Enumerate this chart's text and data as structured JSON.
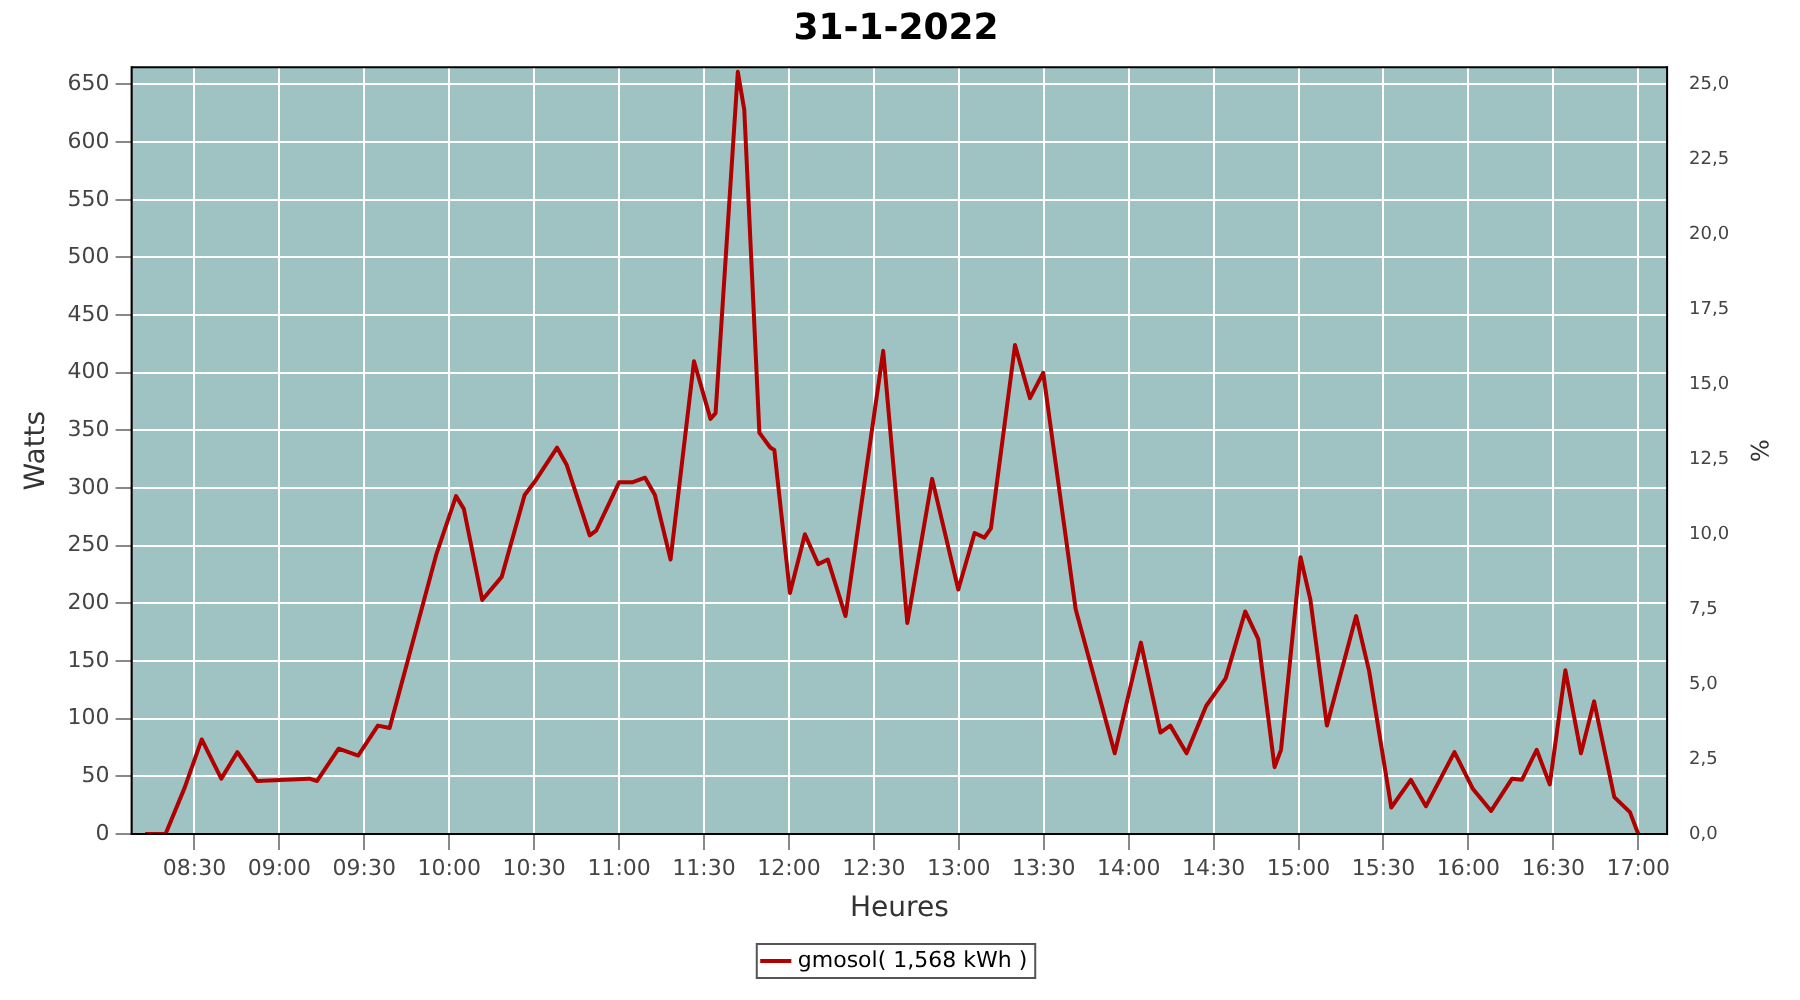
{
  "chart_data": {
    "type": "line",
    "title": "31-1-2022",
    "xlabel": "Heures",
    "ylabel": "Watts",
    "y2label": "%",
    "xlim": [
      8.13,
      17.17
    ],
    "xticks": [
      {
        "value": 8.5,
        "label": "08:30"
      },
      {
        "value": 9,
        "label": "09:00"
      },
      {
        "value": 9.5,
        "label": "09:30"
      },
      {
        "value": 10,
        "label": "10:00"
      },
      {
        "value": 10.5,
        "label": "10:30"
      },
      {
        "value": 11,
        "label": "11:00"
      },
      {
        "value": 11.5,
        "label": "11:30"
      },
      {
        "value": 12,
        "label": "12:00"
      },
      {
        "value": 12.5,
        "label": "12:30"
      },
      {
        "value": 13,
        "label": "13:00"
      },
      {
        "value": 13.5,
        "label": "13:30"
      },
      {
        "value": 14,
        "label": "14:00"
      },
      {
        "value": 14.5,
        "label": "14:30"
      },
      {
        "value": 15,
        "label": "15:00"
      },
      {
        "value": 15.5,
        "label": "15:30"
      },
      {
        "value": 16,
        "label": "16:00"
      },
      {
        "value": 16.5,
        "label": "16:30"
      },
      {
        "value": 17,
        "label": "17:00"
      }
    ],
    "ylim": [
      0,
      665
    ],
    "yticks": [
      0,
      50,
      100,
      150,
      200,
      250,
      300,
      350,
      400,
      450,
      500,
      550,
      600,
      650
    ],
    "y2lim": [
      0,
      25.58
    ],
    "y2ticks": [
      {
        "value": 0,
        "label": "0,0"
      },
      {
        "value": 2.5,
        "label": "2,5"
      },
      {
        "value": 5,
        "label": "5,0"
      },
      {
        "value": 7.5,
        "label": "7,5"
      },
      {
        "value": 10,
        "label": "10,0"
      },
      {
        "value": 12.5,
        "label": "12,5"
      },
      {
        "value": 15,
        "label": "15,0"
      },
      {
        "value": 17.5,
        "label": "17,5"
      },
      {
        "value": 20,
        "label": "20,0"
      },
      {
        "value": 22.5,
        "label": "22,5"
      },
      {
        "value": 25,
        "label": "25,0"
      }
    ],
    "grid": true,
    "legend": "bottom",
    "marker": "none",
    "line_style": "solid",
    "series": [
      {
        "name": "gmosol( 1,568 kWh )",
        "color": "#b00000",
        "x": [
          8.21,
          8.33,
          8.442,
          8.543,
          8.658,
          8.753,
          8.869,
          9.176,
          9.222,
          9.349,
          9.464,
          9.58,
          9.649,
          9.81,
          9.925,
          10.04,
          10.086,
          10.194,
          10.309,
          10.444,
          10.501,
          10.635,
          10.692,
          10.827,
          10.865,
          11.0,
          11.077,
          11.153,
          11.211,
          11.303,
          11.441,
          11.538,
          11.568,
          11.699,
          11.737,
          11.826,
          11.891,
          11.914,
          12.006,
          12.094,
          12.172,
          12.229,
          12.333,
          12.555,
          12.697,
          12.843,
          12.997,
          13.093,
          13.151,
          13.189,
          13.331,
          13.419,
          13.497,
          13.688,
          13.918,
          14.072,
          14.187,
          14.245,
          14.341,
          14.456,
          14.571,
          14.686,
          14.763,
          14.859,
          14.897,
          15.012,
          15.07,
          15.167,
          15.339,
          15.416,
          15.546,
          15.661,
          15.75,
          15.918,
          16.027,
          16.134,
          16.257,
          16.315,
          16.402,
          16.479,
          16.571,
          16.663,
          16.74,
          16.859,
          16.951,
          17.0
        ],
        "values": [
          0,
          0,
          40,
          82,
          48,
          71,
          46,
          48,
          46,
          74,
          68,
          94,
          92,
          180,
          243,
          293,
          282,
          203,
          223,
          294,
          305,
          335,
          320,
          259,
          263,
          305,
          305,
          309,
          294,
          238,
          410,
          360,
          365,
          661,
          628,
          348,
          335,
          333,
          209,
          260,
          234,
          238,
          189,
          419,
          183,
          308,
          212,
          261,
          257,
          265,
          424,
          378,
          400,
          195,
          70,
          166,
          88,
          94,
          70,
          111,
          135,
          193,
          169,
          58,
          73,
          240,
          203,
          94,
          189,
          141,
          23,
          47,
          24,
          71,
          39,
          20,
          48,
          47,
          73,
          43,
          142,
          70,
          115,
          32,
          19,
          0
        ]
      }
    ]
  }
}
